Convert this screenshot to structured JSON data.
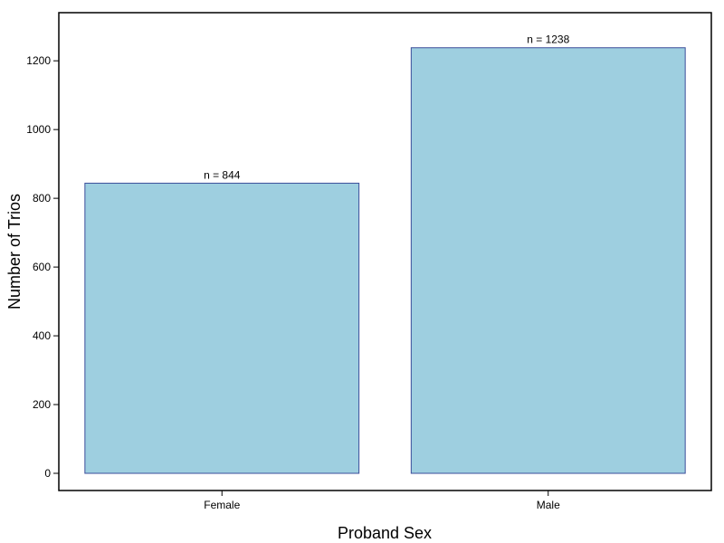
{
  "chart_data": {
    "type": "bar",
    "categories": [
      "Female",
      "Male"
    ],
    "values": [
      844,
      1238
    ],
    "data_labels": [
      "n =  844",
      "n =  1238"
    ],
    "xlabel": "Proband Sex",
    "ylabel": "Number of Trios",
    "ylim": [
      -50,
      1340
    ],
    "yticks": [
      0,
      200,
      400,
      600,
      800,
      1000,
      1200
    ],
    "grid": false,
    "legend": "none",
    "colors": {
      "bar_fill": "#9ecfe0",
      "bar_stroke": "#3a4d9a",
      "frame": "#000000"
    }
  }
}
